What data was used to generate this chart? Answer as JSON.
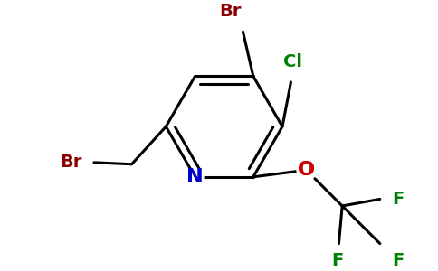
{
  "bg_color": "#ffffff",
  "bond_lw": 2.2,
  "atom_colors": {
    "N": "#0000cc",
    "O": "#cc0000",
    "Br": "#8b0000",
    "Cl": "#008000",
    "F": "#008000",
    "C": "#000000"
  },
  "fs_large": 16,
  "fs_small": 14
}
